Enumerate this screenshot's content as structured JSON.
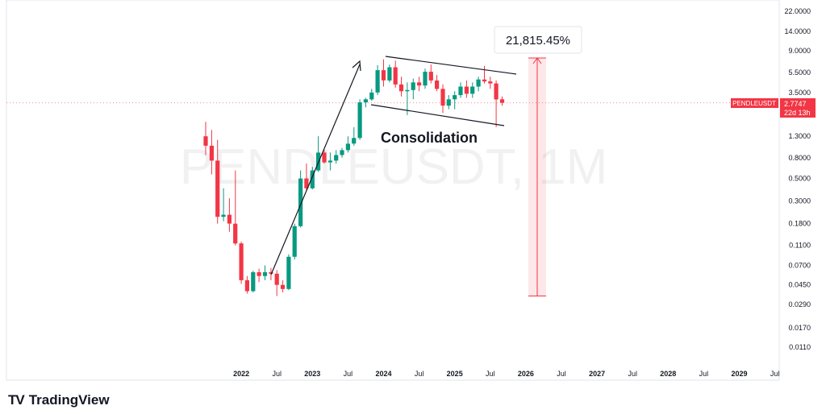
{
  "chart_data": {
    "type": "candlestick",
    "symbol": "PENDLEUSDT",
    "interval": "1M",
    "watermark": "PENDLEUSDT, 1M",
    "last_price_label": "2.7747",
    "countdown_label": "22d 13h",
    "last_price": 2.7747,
    "annotations": {
      "gain_label": "21,815.45%",
      "pattern_label": "Consolidation",
      "measure_range": [
        0.035,
        7.65
      ]
    },
    "y_axis": {
      "scale": "log",
      "ticks": [
        {
          "value": 22.0,
          "label": "22.0000"
        },
        {
          "value": 14.0,
          "label": "14.0000"
        },
        {
          "value": 9.0,
          "label": "9.0000"
        },
        {
          "value": 5.5,
          "label": "5.5000"
        },
        {
          "value": 3.5,
          "label": "3.5000"
        },
        {
          "value": 1.3,
          "label": "1.3000"
        },
        {
          "value": 0.8,
          "label": "0.8000"
        },
        {
          "value": 0.5,
          "label": "0.5000"
        },
        {
          "value": 0.3,
          "label": "0.3000"
        },
        {
          "value": 0.18,
          "label": "0.1800"
        },
        {
          "value": 0.11,
          "label": "0.1100"
        },
        {
          "value": 0.07,
          "label": "0.0700"
        },
        {
          "value": 0.045,
          "label": "0.0450"
        },
        {
          "value": 0.029,
          "label": "0.0290"
        },
        {
          "value": 0.017,
          "label": "0.0170"
        },
        {
          "value": 0.011,
          "label": "0.0110"
        }
      ]
    },
    "x_axis": {
      "ticks": [
        {
          "label": "2022",
          "bold": true
        },
        {
          "label": "Jul",
          "bold": false
        },
        {
          "label": "2023",
          "bold": true
        },
        {
          "label": "Jul",
          "bold": false
        },
        {
          "label": "2024",
          "bold": true
        },
        {
          "label": "Jul",
          "bold": false
        },
        {
          "label": "2025",
          "bold": true
        },
        {
          "label": "Jul",
          "bold": false
        },
        {
          "label": "2026",
          "bold": true
        },
        {
          "label": "Jul",
          "bold": false
        },
        {
          "label": "2027",
          "bold": true
        },
        {
          "label": "Jul",
          "bold": false
        },
        {
          "label": "2028",
          "bold": true
        },
        {
          "label": "Jul",
          "bold": false
        },
        {
          "label": "2029",
          "bold": true
        },
        {
          "label": "Jul",
          "bold": false
        }
      ]
    },
    "candles": [
      {
        "date": "2021-07",
        "open": 1.3,
        "high": 1.8,
        "low": 0.85,
        "close": 1.05
      },
      {
        "date": "2021-08",
        "open": 1.05,
        "high": 1.5,
        "low": 0.55,
        "close": 0.75
      },
      {
        "date": "2021-09",
        "open": 0.75,
        "high": 1.2,
        "low": 0.18,
        "close": 0.21
      },
      {
        "date": "2021-10",
        "open": 0.21,
        "high": 0.4,
        "low": 0.19,
        "close": 0.22
      },
      {
        "date": "2021-11",
        "open": 0.22,
        "high": 0.32,
        "low": 0.15,
        "close": 0.18
      },
      {
        "date": "2021-12",
        "open": 0.18,
        "high": 0.6,
        "low": 0.11,
        "close": 0.115
      },
      {
        "date": "2022-01",
        "open": 0.115,
        "high": 0.12,
        "low": 0.046,
        "close": 0.05
      },
      {
        "date": "2022-02",
        "open": 0.05,
        "high": 0.055,
        "low": 0.037,
        "close": 0.039
      },
      {
        "date": "2022-03",
        "open": 0.039,
        "high": 0.062,
        "low": 0.038,
        "close": 0.06
      },
      {
        "date": "2022-04",
        "open": 0.06,
        "high": 0.065,
        "low": 0.048,
        "close": 0.055
      },
      {
        "date": "2022-05",
        "open": 0.055,
        "high": 0.07,
        "low": 0.05,
        "close": 0.06
      },
      {
        "date": "2022-06",
        "open": 0.06,
        "high": 0.066,
        "low": 0.05,
        "close": 0.058
      },
      {
        "date": "2022-07",
        "open": 0.058,
        "high": 0.063,
        "low": 0.035,
        "close": 0.045
      },
      {
        "date": "2022-08",
        "open": 0.045,
        "high": 0.05,
        "low": 0.038,
        "close": 0.041
      },
      {
        "date": "2022-09",
        "open": 0.041,
        "high": 0.09,
        "low": 0.04,
        "close": 0.085
      },
      {
        "date": "2022-10",
        "open": 0.085,
        "high": 0.18,
        "low": 0.08,
        "close": 0.17
      },
      {
        "date": "2022-11",
        "open": 0.17,
        "high": 0.6,
        "low": 0.165,
        "close": 0.5
      },
      {
        "date": "2022-12",
        "open": 0.5,
        "high": 0.7,
        "low": 0.38,
        "close": 0.4
      },
      {
        "date": "2023-01",
        "open": 0.4,
        "high": 0.65,
        "low": 0.39,
        "close": 0.6
      },
      {
        "date": "2023-02",
        "open": 0.6,
        "high": 1.3,
        "low": 0.58,
        "close": 0.9
      },
      {
        "date": "2023-03",
        "open": 0.9,
        "high": 0.95,
        "low": 0.7,
        "close": 0.72
      },
      {
        "date": "2023-04",
        "open": 0.72,
        "high": 0.9,
        "low": 0.6,
        "close": 0.75
      },
      {
        "date": "2023-05",
        "open": 0.75,
        "high": 0.95,
        "low": 0.7,
        "close": 0.85
      },
      {
        "date": "2023-06",
        "open": 0.85,
        "high": 1.0,
        "low": 0.8,
        "close": 0.95
      },
      {
        "date": "2023-07",
        "open": 0.95,
        "high": 1.3,
        "low": 0.9,
        "close": 1.1
      },
      {
        "date": "2023-08",
        "open": 1.1,
        "high": 1.6,
        "low": 1.05,
        "close": 1.25
      },
      {
        "date": "2023-09",
        "open": 1.25,
        "high": 3.0,
        "low": 1.2,
        "close": 2.8
      },
      {
        "date": "2023-10",
        "open": 2.8,
        "high": 3.1,
        "low": 2.5,
        "close": 3.0
      },
      {
        "date": "2023-11",
        "open": 3.0,
        "high": 3.8,
        "low": 2.9,
        "close": 3.5
      },
      {
        "date": "2023-12",
        "open": 3.5,
        "high": 6.5,
        "low": 3.3,
        "close": 5.8
      },
      {
        "date": "2024-01",
        "open": 5.8,
        "high": 7.4,
        "low": 4.0,
        "close": 4.6
      },
      {
        "date": "2024-02",
        "open": 4.6,
        "high": 6.6,
        "low": 4.4,
        "close": 6.2
      },
      {
        "date": "2024-03",
        "open": 6.2,
        "high": 7.2,
        "low": 3.9,
        "close": 4.2
      },
      {
        "date": "2024-04",
        "open": 4.2,
        "high": 5.0,
        "low": 3.2,
        "close": 3.6
      },
      {
        "date": "2024-05",
        "open": 3.6,
        "high": 4.4,
        "low": 2.1,
        "close": 3.7
      },
      {
        "date": "2024-06",
        "open": 3.7,
        "high": 4.8,
        "low": 3.0,
        "close": 4.4
      },
      {
        "date": "2024-07",
        "open": 4.4,
        "high": 5.0,
        "low": 3.6,
        "close": 4.1
      },
      {
        "date": "2024-08",
        "open": 4.1,
        "high": 6.0,
        "low": 3.8,
        "close": 5.6
      },
      {
        "date": "2024-09",
        "open": 5.6,
        "high": 6.6,
        "low": 4.3,
        "close": 4.6
      },
      {
        "date": "2024-10",
        "open": 4.6,
        "high": 5.2,
        "low": 3.6,
        "close": 3.8
      },
      {
        "date": "2024-11",
        "open": 3.8,
        "high": 4.2,
        "low": 2.2,
        "close": 2.6
      },
      {
        "date": "2024-12",
        "open": 2.6,
        "high": 3.3,
        "low": 2.4,
        "close": 3.0
      },
      {
        "date": "2025-01",
        "open": 3.0,
        "high": 3.6,
        "low": 2.4,
        "close": 3.3
      },
      {
        "date": "2025-02",
        "open": 3.3,
        "high": 4.4,
        "low": 3.1,
        "close": 4.0
      },
      {
        "date": "2025-03",
        "open": 4.0,
        "high": 4.6,
        "low": 3.1,
        "close": 3.4
      },
      {
        "date": "2025-04",
        "open": 3.4,
        "high": 4.4,
        "low": 3.1,
        "close": 4.0
      },
      {
        "date": "2025-05",
        "open": 4.0,
        "high": 5.0,
        "low": 3.6,
        "close": 4.7
      },
      {
        "date": "2025-06",
        "open": 4.7,
        "high": 6.4,
        "low": 4.3,
        "close": 4.5
      },
      {
        "date": "2025-07",
        "open": 4.5,
        "high": 5.0,
        "low": 3.8,
        "close": 4.3
      },
      {
        "date": "2025-08",
        "open": 4.3,
        "high": 4.6,
        "low": 1.6,
        "close": 3.0
      },
      {
        "date": "2025-09",
        "open": 3.0,
        "high": 3.2,
        "low": 2.6,
        "close": 2.7747
      }
    ]
  }
}
